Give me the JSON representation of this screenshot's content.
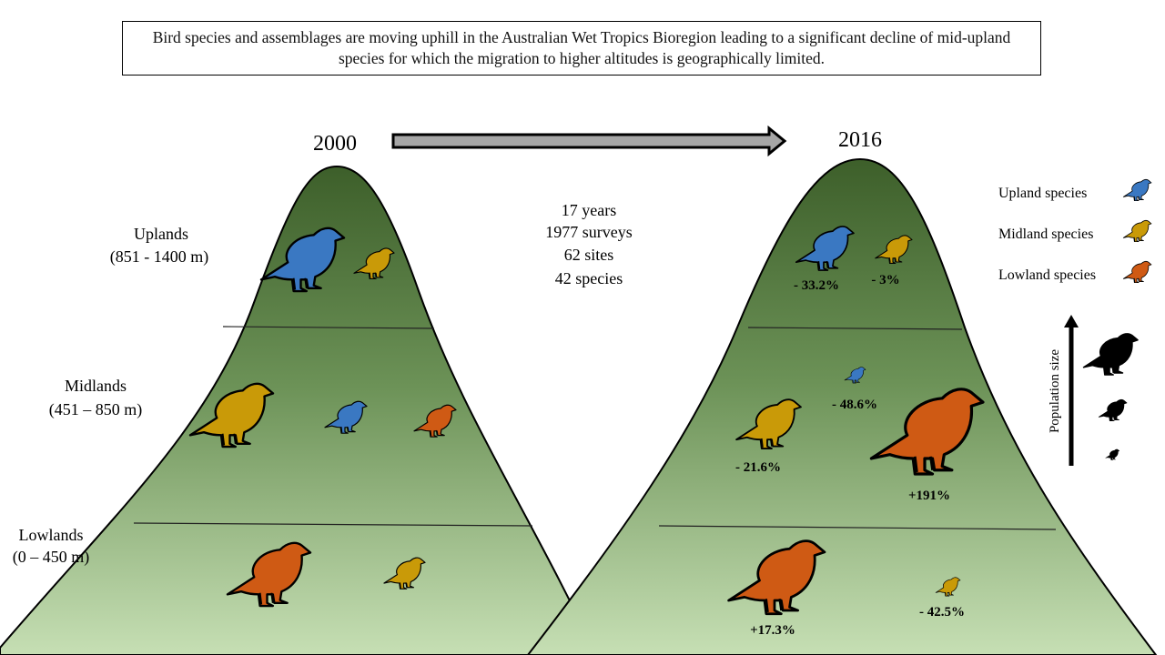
{
  "caption": "Bird species and assemblages are moving uphill in the Australian Wet Tropics Bioregion leading to a significant decline of mid-upland species for which the migration to higher altitudes is geographically limited.",
  "left_year": "2000",
  "right_year": "2016",
  "stats": {
    "years": "17 years",
    "surveys": "1977 surveys",
    "sites": "62 sites",
    "species": "42 species"
  },
  "zones": {
    "uplands_name": "Uplands",
    "uplands_range": "(851 - 1400 m)",
    "midlands_name": "Midlands",
    "midlands_range": "(451 – 850 m)",
    "lowlands_name": "Lowlands",
    "lowlands_range": "(0 – 450 m)"
  },
  "changes": {
    "upland_in_uplands": "- 33.2%",
    "midland_in_uplands": "- 3%",
    "upland_in_midlands": "- 48.6%",
    "midland_in_midlands": "- 21.6%",
    "lowland_in_midlands": "+191%",
    "lowland_in_lowlands": "+17.3%",
    "midland_in_lowlands": "- 42.5%"
  },
  "legend": {
    "upland": "Upland species",
    "midland": "Midland species",
    "lowland": "Lowland species"
  },
  "population_label": "Population size",
  "colors": {
    "upland": "#3a78c2",
    "midland": "#c99a08",
    "lowland": "#cf5a14",
    "mountain_top": "#3d5f2a",
    "mountain_bottom": "#c3ddb0",
    "outline": "#000000"
  },
  "icons": {
    "bird": "bird-icon",
    "arrow": "right-arrow-icon"
  }
}
